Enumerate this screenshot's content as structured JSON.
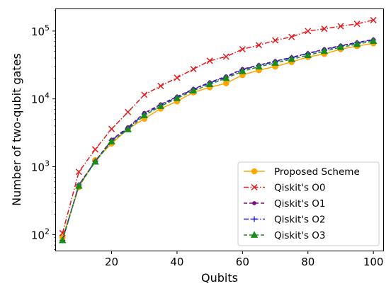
{
  "chart_data": {
    "type": "line",
    "title": "",
    "xlabel": "Qubits",
    "ylabel": "Number of two-qubit gates",
    "xscale": "linear",
    "yscale": "log",
    "xlim": [
      3,
      103
    ],
    "ylim": [
      58,
      210000
    ],
    "xticks": [
      20,
      40,
      60,
      80,
      100
    ],
    "yticks": [
      {
        "value": 100,
        "base": "10",
        "exp": "2"
      },
      {
        "value": 1000,
        "base": "10",
        "exp": "3"
      },
      {
        "value": 10000,
        "base": "10",
        "exp": "4"
      },
      {
        "value": 100000,
        "base": "10",
        "exp": "5"
      }
    ],
    "grid": false,
    "legend_position": "lower-right",
    "x": [
      5,
      10,
      15,
      20,
      25,
      30,
      35,
      40,
      45,
      50,
      55,
      60,
      65,
      70,
      75,
      80,
      85,
      90,
      95,
      100
    ],
    "series": [
      {
        "name": "Proposed Scheme",
        "color": "#FFA500",
        "linestyle": "solid",
        "marker": "circle",
        "values": [
          90,
          500,
          1250,
          2200,
          3600,
          5100,
          7200,
          9200,
          12500,
          14800,
          17000,
          22500,
          26500,
          30000,
          35000,
          41500,
          46000,
          54000,
          60000,
          66000
        ]
      },
      {
        "name": "Qiskit's O0",
        "color": "#E41A1C",
        "linestyle": "dashdot",
        "marker": "x",
        "values": [
          105,
          840,
          1800,
          3600,
          6400,
          11500,
          15500,
          20500,
          27500,
          36500,
          42000,
          54000,
          62000,
          73000,
          82000,
          100000,
          108000,
          118000,
          128000,
          145000
        ]
      },
      {
        "name": "Qiskit's O1",
        "color": "#7B0A7B",
        "linestyle": "dashed",
        "marker": "dot",
        "values": [
          82,
          540,
          1200,
          2500,
          3800,
          6200,
          8300,
          10800,
          14000,
          17500,
          21500,
          27500,
          31500,
          36000,
          41000,
          47000,
          54000,
          61000,
          68000,
          75000
        ]
      },
      {
        "name": "Qiskit's O2",
        "color": "#1F1FD0",
        "linestyle": "dashdot",
        "marker": "plus",
        "values": [
          82,
          540,
          1200,
          2450,
          3700,
          6000,
          8100,
          10600,
          13800,
          17200,
          21000,
          27000,
          31000,
          35500,
          40500,
          46500,
          53000,
          60000,
          67000,
          74000
        ]
      },
      {
        "name": "Qiskit's O3",
        "color": "#1A8C1A",
        "linestyle": "dashed",
        "marker": "triangle",
        "values": [
          82,
          520,
          1180,
          2350,
          3550,
          5700,
          7800,
          10200,
          13200,
          16400,
          20200,
          25500,
          29800,
          33800,
          38500,
          44000,
          50500,
          57500,
          64000,
          71000
        ]
      }
    ]
  }
}
